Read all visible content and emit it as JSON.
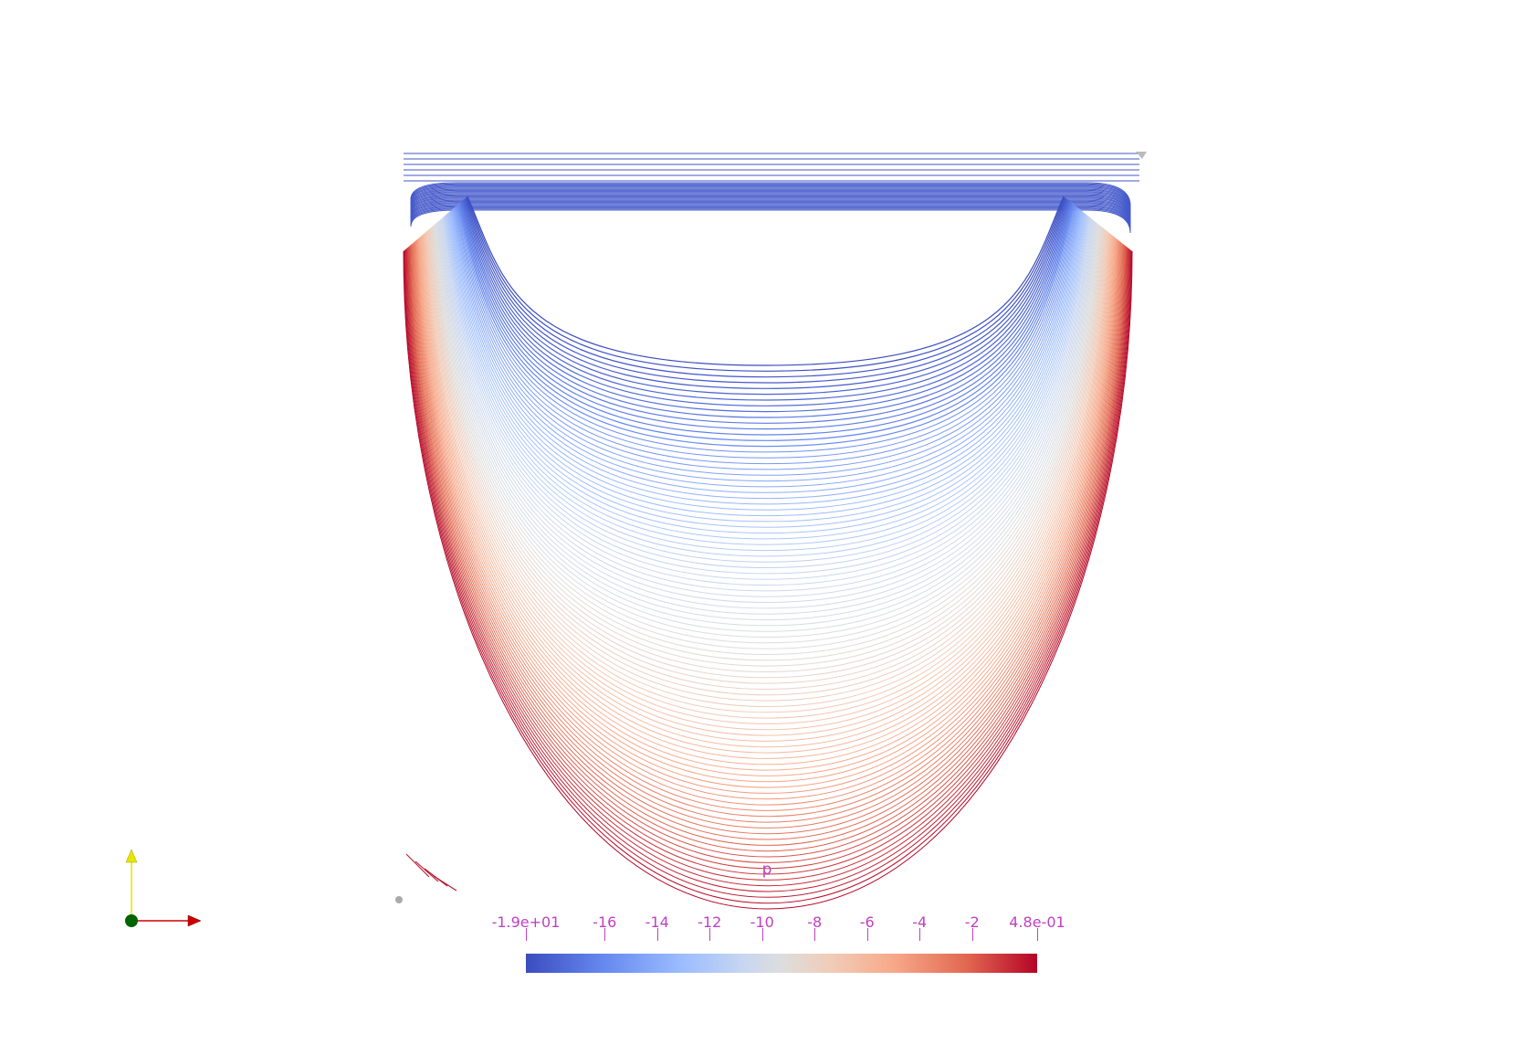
{
  "colorbar": {
    "title": "p",
    "range": [
      -19,
      0.48
    ],
    "colormap": [
      "#3b4cc0",
      "#dddddd",
      "#b40426"
    ],
    "ticks": [
      {
        "value": -19,
        "label": "-1.9e+01"
      },
      {
        "value": -16,
        "label": "-16"
      },
      {
        "value": -14,
        "label": "-14"
      },
      {
        "value": -12,
        "label": "-12"
      },
      {
        "value": -10,
        "label": "-10"
      },
      {
        "value": -8,
        "label": "-8"
      },
      {
        "value": -6,
        "label": "-6"
      },
      {
        "value": -4,
        "label": "-4"
      },
      {
        "value": -2,
        "label": "-2"
      },
      {
        "value": 0.48,
        "label": "4.8e-01"
      }
    ]
  },
  "axes": {
    "x_color": "#cc0000",
    "y_color": "#e6e600",
    "z_color": "#006400"
  }
}
